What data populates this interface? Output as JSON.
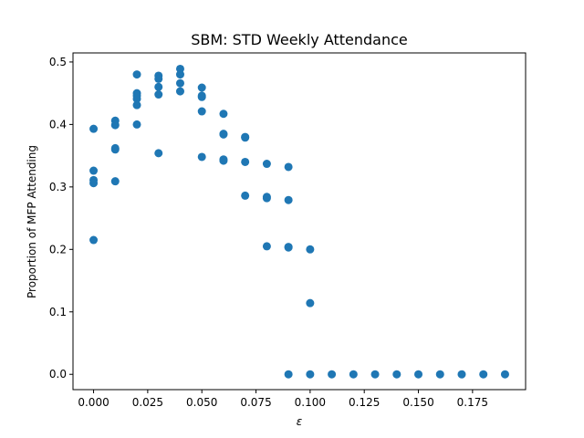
{
  "chart_data": {
    "type": "scatter",
    "title": "SBM: STD Weekly Attendance",
    "xlabel": "ε",
    "ylabel": "Proportion of MFP Attending",
    "xlim": [
      -0.0095,
      0.1995
    ],
    "ylim": [
      -0.0245,
      0.5145
    ],
    "xticks": [
      "0.000",
      "0.025",
      "0.050",
      "0.075",
      "0.100",
      "0.125",
      "0.150",
      "0.175"
    ],
    "yticks": [
      "0.0",
      "0.1",
      "0.2",
      "0.3",
      "0.4",
      "0.5"
    ],
    "marker_color": "#1f77b4",
    "grid": false,
    "points": [
      [
        0.0,
        0.393
      ],
      [
        0.0,
        0.326
      ],
      [
        0.0,
        0.311
      ],
      [
        0.0,
        0.306
      ],
      [
        0.0,
        0.215
      ],
      [
        0.01,
        0.406
      ],
      [
        0.01,
        0.399
      ],
      [
        0.01,
        0.362
      ],
      [
        0.01,
        0.36
      ],
      [
        0.01,
        0.309
      ],
      [
        0.02,
        0.48
      ],
      [
        0.02,
        0.45
      ],
      [
        0.02,
        0.446
      ],
      [
        0.02,
        0.441
      ],
      [
        0.02,
        0.431
      ],
      [
        0.02,
        0.4
      ],
      [
        0.03,
        0.478
      ],
      [
        0.03,
        0.473
      ],
      [
        0.03,
        0.46
      ],
      [
        0.03,
        0.448
      ],
      [
        0.03,
        0.354
      ],
      [
        0.04,
        0.489
      ],
      [
        0.04,
        0.48
      ],
      [
        0.04,
        0.466
      ],
      [
        0.04,
        0.453
      ],
      [
        0.05,
        0.459
      ],
      [
        0.05,
        0.446
      ],
      [
        0.05,
        0.444
      ],
      [
        0.05,
        0.421
      ],
      [
        0.05,
        0.348
      ],
      [
        0.06,
        0.417
      ],
      [
        0.06,
        0.385
      ],
      [
        0.06,
        0.384
      ],
      [
        0.06,
        0.344
      ],
      [
        0.06,
        0.342
      ],
      [
        0.07,
        0.38
      ],
      [
        0.07,
        0.379
      ],
      [
        0.07,
        0.34
      ],
      [
        0.07,
        0.286
      ],
      [
        0.08,
        0.337
      ],
      [
        0.08,
        0.284
      ],
      [
        0.08,
        0.282
      ],
      [
        0.08,
        0.205
      ],
      [
        0.09,
        0.332
      ],
      [
        0.09,
        0.279
      ],
      [
        0.09,
        0.204
      ],
      [
        0.09,
        0.203
      ],
      [
        0.09,
        0.0
      ],
      [
        0.1,
        0.2
      ],
      [
        0.1,
        0.114
      ],
      [
        0.1,
        0.0
      ],
      [
        0.11,
        0.0
      ],
      [
        0.12,
        0.0
      ],
      [
        0.13,
        0.0
      ],
      [
        0.14,
        0.0
      ],
      [
        0.15,
        0.0
      ],
      [
        0.16,
        0.0
      ],
      [
        0.17,
        0.0
      ],
      [
        0.18,
        0.0
      ],
      [
        0.19,
        0.0
      ]
    ]
  }
}
